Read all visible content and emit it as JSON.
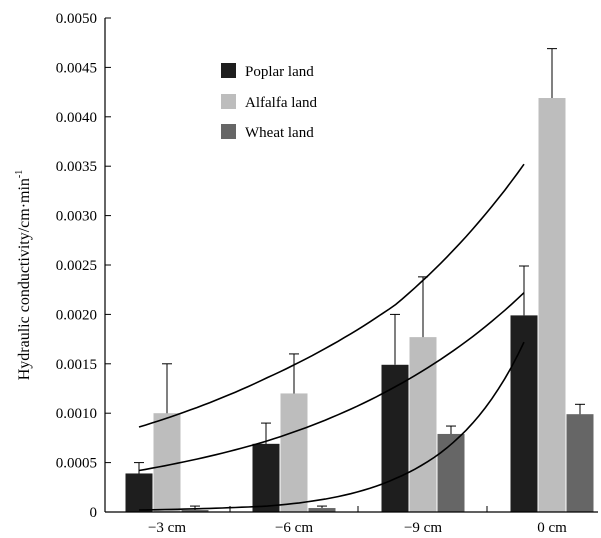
{
  "chart_data": {
    "type": "bar",
    "ylabel": "Hydraulic conductivity/cm·min",
    "ylabel_superscript": "-1",
    "xlabel": "",
    "ylim": [
      0,
      0.005
    ],
    "yticks": [
      "0",
      "0.0005",
      "0.0010",
      "0.0015",
      "0.0020",
      "0.0025",
      "0.0030",
      "0.0035",
      "0.0040",
      "0.0045",
      "0.0050"
    ],
    "categories": [
      "−3 cm",
      "−6 cm",
      "−9 cm",
      "0 cm"
    ],
    "legend_position": "top-center",
    "grid": false,
    "series": [
      {
        "name": "Poplar land",
        "color": "#1e1e1e",
        "values": [
          0.00039,
          0.00069,
          0.00149,
          0.00199
        ],
        "errors": [
          0.00011,
          0.00021,
          0.00051,
          0.0005
        ]
      },
      {
        "name": "Alfalfa land",
        "color": "#bdbdbd",
        "values": [
          0.001,
          0.0012,
          0.00177,
          0.00419
        ],
        "errors": [
          0.0005,
          0.0004,
          0.00061,
          0.0005
        ]
      },
      {
        "name": "Wheat land",
        "color": "#666666",
        "values": [
          2e-05,
          4e-05,
          0.00079,
          0.00099
        ],
        "errors": [
          4e-05,
          2e-05,
          8e-05,
          0.0001
        ]
      }
    ],
    "trend_lines": [
      {
        "series": "Alfalfa land",
        "points": [
          0.00086,
          0.00136,
          0.0021,
          0.00352
        ]
      },
      {
        "series": "Poplar land",
        "points": [
          0.00042,
          0.00072,
          0.00127,
          0.00222
        ]
      },
      {
        "series": "Wheat land",
        "points": [
          2e-05,
          6e-05,
          0.00034,
          0.00172
        ]
      }
    ]
  }
}
